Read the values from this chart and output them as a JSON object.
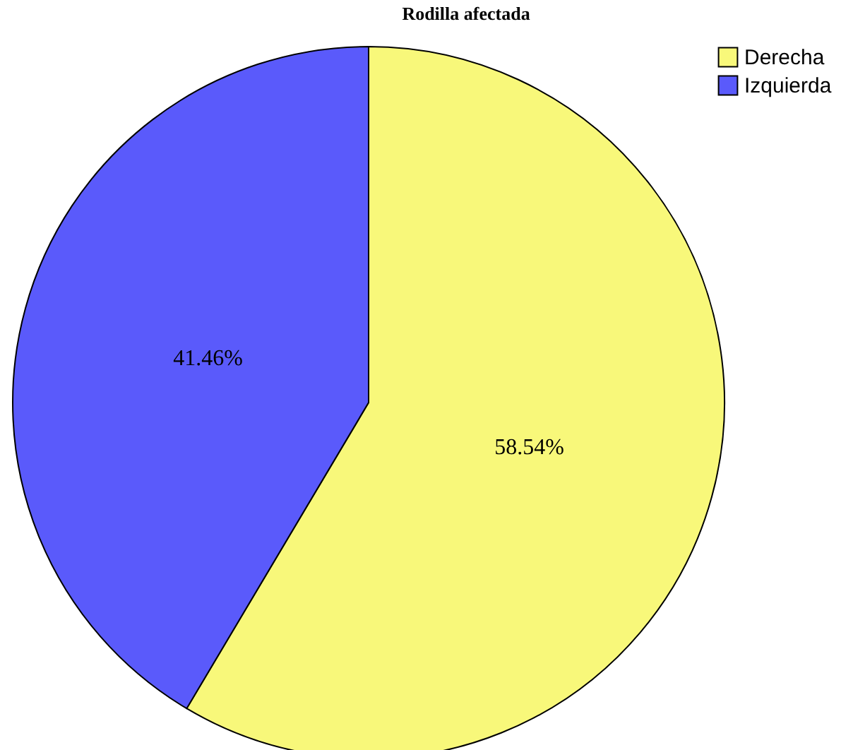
{
  "chart_data": {
    "type": "pie",
    "title": "Rodilla afectada",
    "categories": [
      "Derecha",
      "Izquierda"
    ],
    "values": [
      58.54,
      41.46
    ],
    "colors": [
      "#f8f87a",
      "#5a5afb"
    ],
    "value_labels": [
      "58.54%",
      "41.46%"
    ],
    "legend": "top right"
  }
}
